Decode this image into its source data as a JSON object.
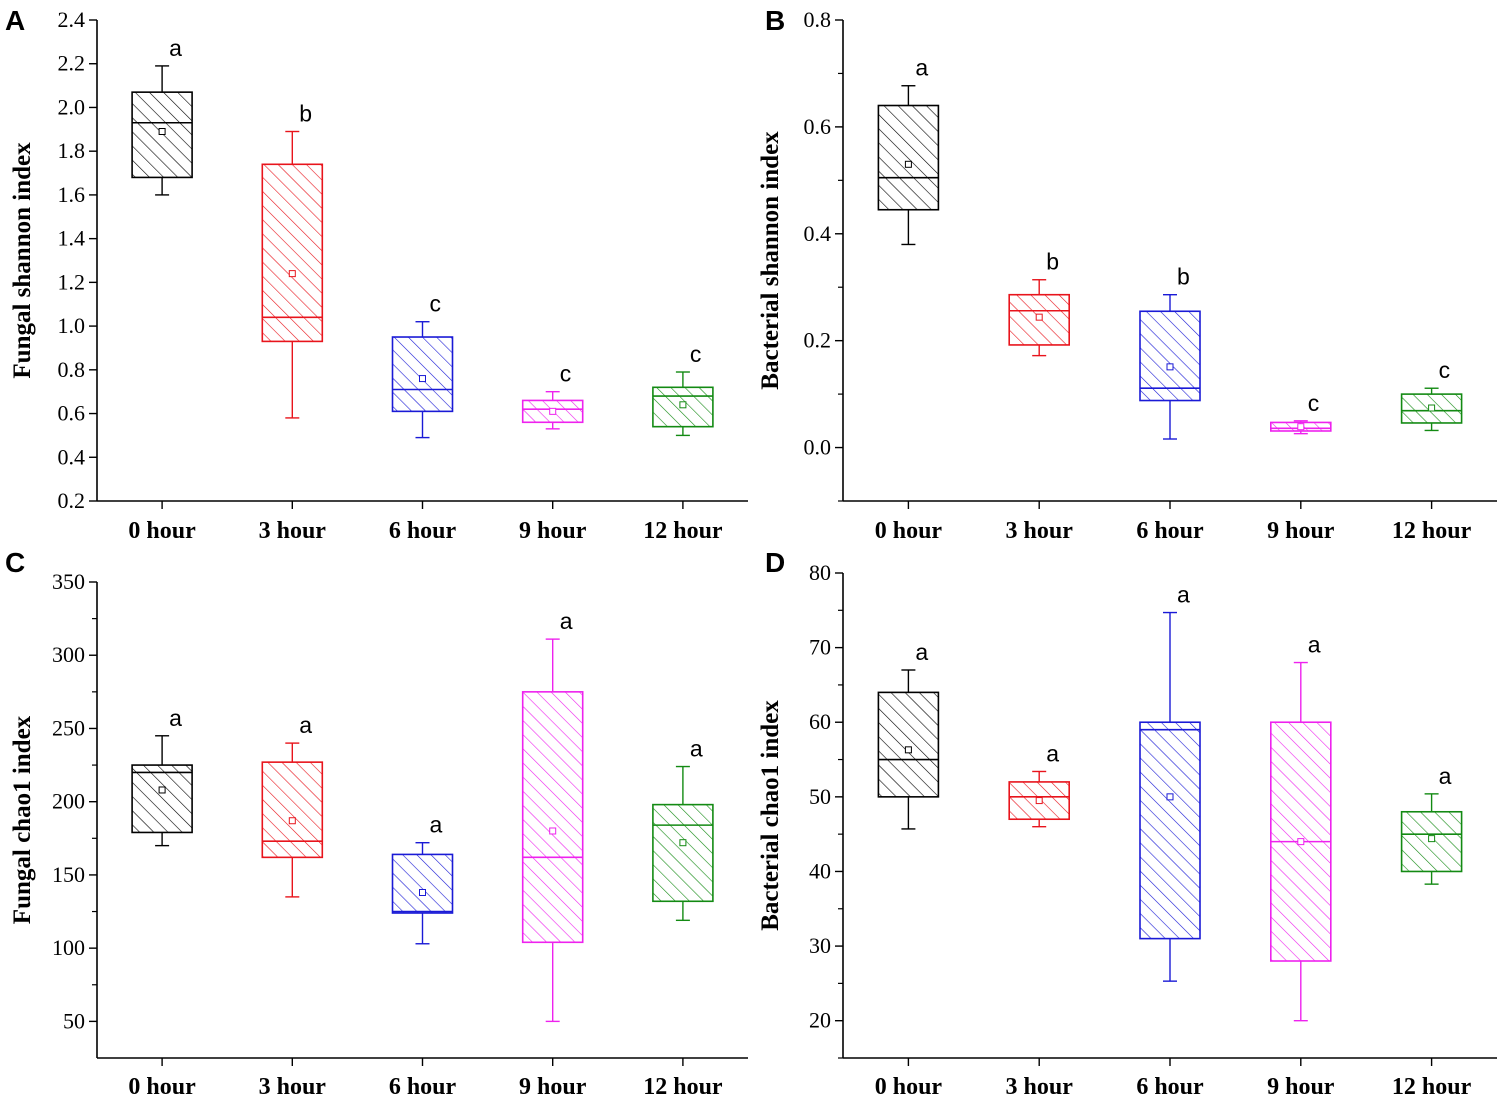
{
  "chart_data": [
    {
      "type": "box",
      "panel": "A",
      "ylabel": "Fungal shannon index",
      "xlabel": "",
      "categories": [
        "0 hour",
        "3 hour",
        "6 hour",
        "9 hour",
        "12 hour"
      ],
      "ylim": [
        0.2,
        2.4
      ],
      "yticks": [
        "0.2",
        "0.4",
        "0.6",
        "0.8",
        "1.0",
        "1.2",
        "1.4",
        "1.6",
        "1.8",
        "2.0",
        "2.2",
        "2.4"
      ],
      "ytick_values": [
        0.2,
        0.4,
        0.6,
        0.8,
        1.0,
        1.2,
        1.4,
        1.6,
        1.8,
        2.0,
        2.2,
        2.4
      ],
      "boxes": [
        {
          "min": 1.6,
          "q1": 1.68,
          "median": 1.93,
          "q3": 2.07,
          "max": 2.19,
          "mean": 1.89,
          "letter": "a",
          "color": "#000000"
        },
        {
          "min": 0.58,
          "q1": 0.93,
          "median": 1.04,
          "q3": 1.74,
          "max": 1.89,
          "mean": 1.24,
          "letter": "b",
          "color": "#e8141c"
        },
        {
          "min": 0.49,
          "q1": 0.61,
          "median": 0.71,
          "q3": 0.95,
          "max": 1.02,
          "mean": 0.76,
          "letter": "c",
          "color": "#1a1ad6"
        },
        {
          "min": 0.53,
          "q1": 0.56,
          "median": 0.62,
          "q3": 0.66,
          "max": 0.7,
          "mean": 0.61,
          "letter": "c",
          "color": "#ee22ee"
        },
        {
          "min": 0.5,
          "q1": 0.54,
          "median": 0.68,
          "q3": 0.72,
          "max": 0.79,
          "mean": 0.64,
          "letter": "c",
          "color": "#138a13"
        }
      ]
    },
    {
      "type": "box",
      "panel": "B",
      "ylabel": "Bacterial shannon index",
      "xlabel": "",
      "categories": [
        "0 hour",
        "3 hour",
        "6 hour",
        "9 hour",
        "12 hour"
      ],
      "ylim": [
        -0.1,
        0.8
      ],
      "yticks": [
        "0.0",
        "0.2",
        "0.4",
        "0.6",
        "0.8"
      ],
      "ytick_values": [
        0.0,
        0.2,
        0.4,
        0.6,
        0.8
      ],
      "minor_ticks": [
        -0.1,
        0.1,
        0.3,
        0.5,
        0.7
      ],
      "boxes": [
        {
          "min": 0.38,
          "q1": 0.445,
          "median": 0.505,
          "q3": 0.64,
          "max": 0.677,
          "mean": 0.53,
          "letter": "a",
          "color": "#000000"
        },
        {
          "min": 0.172,
          "q1": 0.192,
          "median": 0.256,
          "q3": 0.286,
          "max": 0.314,
          "mean": 0.244,
          "letter": "b",
          "color": "#e8141c"
        },
        {
          "min": 0.016,
          "q1": 0.088,
          "median": 0.111,
          "q3": 0.255,
          "max": 0.286,
          "mean": 0.151,
          "letter": "b",
          "color": "#1a1ad6"
        },
        {
          "min": 0.026,
          "q1": 0.031,
          "median": 0.036,
          "q3": 0.047,
          "max": 0.05,
          "mean": 0.039,
          "letter": "c",
          "color": "#ee22ee"
        },
        {
          "min": 0.032,
          "q1": 0.046,
          "median": 0.069,
          "q3": 0.1,
          "max": 0.111,
          "mean": 0.074,
          "letter": "c",
          "color": "#138a13"
        }
      ]
    },
    {
      "type": "box",
      "panel": "C",
      "ylabel": "Fungal chao1 index",
      "xlabel": "",
      "categories": [
        "0 hour",
        "3 hour",
        "6 hour",
        "9 hour",
        "12 hour"
      ],
      "ylim": [
        25,
        350
      ],
      "yticks": [
        "50",
        "100",
        "150",
        "200",
        "250",
        "300",
        "350"
      ],
      "ytick_values": [
        50,
        100,
        150,
        200,
        250,
        300,
        350
      ],
      "minor_ticks": [
        75,
        125,
        175,
        225,
        275,
        325
      ],
      "boxes": [
        {
          "min": 170,
          "q1": 179,
          "median": 220,
          "q3": 225,
          "max": 245,
          "mean": 208,
          "letter": "a",
          "color": "#000000"
        },
        {
          "min": 135,
          "q1": 162,
          "median": 173,
          "q3": 227,
          "max": 240,
          "mean": 187,
          "letter": "a",
          "color": "#e8141c"
        },
        {
          "min": 103,
          "q1": 124,
          "median": 125,
          "q3": 164,
          "max": 172,
          "mean": 138,
          "letter": "a",
          "color": "#1a1ad6"
        },
        {
          "min": 50,
          "q1": 104,
          "median": 162,
          "q3": 275,
          "max": 311,
          "mean": 180,
          "letter": "a",
          "color": "#ee22ee"
        },
        {
          "min": 119,
          "q1": 132,
          "median": 184,
          "q3": 198,
          "max": 224,
          "mean": 172,
          "letter": "a",
          "color": "#138a13"
        }
      ]
    },
    {
      "type": "box",
      "panel": "D",
      "ylabel": "Bacterial chao1 index",
      "xlabel": "",
      "categories": [
        "0 hour",
        "3 hour",
        "6 hour",
        "9 hour",
        "12 hour"
      ],
      "ylim": [
        15,
        80
      ],
      "yticks": [
        "20",
        "30",
        "40",
        "50",
        "60",
        "70",
        "80"
      ],
      "ytick_values": [
        20,
        30,
        40,
        50,
        60,
        70,
        80
      ],
      "minor_ticks": [
        15,
        25,
        35,
        45,
        55,
        65,
        75
      ],
      "boxes": [
        {
          "min": 45.7,
          "q1": 50,
          "median": 55,
          "q3": 64,
          "max": 67,
          "mean": 56.3,
          "letter": "a",
          "color": "#000000"
        },
        {
          "min": 46,
          "q1": 47,
          "median": 50,
          "q3": 52,
          "max": 53.4,
          "mean": 49.5,
          "letter": "a",
          "color": "#e8141c"
        },
        {
          "min": 25.3,
          "q1": 31,
          "median": 59,
          "q3": 60,
          "max": 74.7,
          "mean": 50,
          "letter": "a",
          "color": "#1a1ad6"
        },
        {
          "min": 20,
          "q1": 28,
          "median": 44,
          "q3": 60,
          "max": 68,
          "mean": 44,
          "letter": "a",
          "color": "#ee22ee"
        },
        {
          "min": 38.3,
          "q1": 40,
          "median": 45,
          "q3": 48,
          "max": 50.4,
          "mean": 44.4,
          "letter": "a",
          "color": "#138a13"
        }
      ]
    }
  ]
}
